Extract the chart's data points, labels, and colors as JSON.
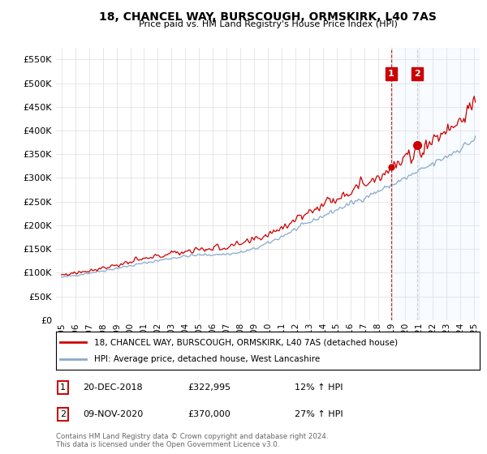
{
  "title": "18, CHANCEL WAY, BURSCOUGH, ORMSKIRK, L40 7AS",
  "subtitle": "Price paid vs. HM Land Registry's House Price Index (HPI)",
  "legend_entry1": "18, CHANCEL WAY, BURSCOUGH, ORMSKIRK, L40 7AS (detached house)",
  "legend_entry2": "HPI: Average price, detached house, West Lancashire",
  "annotation1_label": "1",
  "annotation1_date": "20-DEC-2018",
  "annotation1_price": "£322,995",
  "annotation1_hpi": "12% ↑ HPI",
  "annotation2_label": "2",
  "annotation2_date": "09-NOV-2020",
  "annotation2_price": "£370,000",
  "annotation2_hpi": "27% ↑ HPI",
  "footer": "Contains HM Land Registry data © Crown copyright and database right 2024.\nThis data is licensed under the Open Government Licence v3.0.",
  "sale1_year": 2018.96,
  "sale1_value": 322995,
  "sale2_year": 2020.86,
  "sale2_value": 370000,
  "property_color": "#cc0000",
  "hpi_color": "#88aacc",
  "annotation_box_color": "#cc0000",
  "vline1_color": "#cc0000",
  "vline2_color": "#aabbcc",
  "highlight_color": "#ddeeff",
  "grid_color": "#dddddd",
  "background_color": "#ffffff",
  "ylim": [
    0,
    575000
  ],
  "yticks": [
    0,
    50000,
    100000,
    150000,
    200000,
    250000,
    300000,
    350000,
    400000,
    450000,
    500000,
    550000
  ],
  "xlim_start": 1994.6,
  "xlim_end": 2025.4,
  "xticks": [
    1995,
    1996,
    1997,
    1998,
    1999,
    2000,
    2001,
    2002,
    2003,
    2004,
    2005,
    2006,
    2007,
    2008,
    2009,
    2010,
    2011,
    2012,
    2013,
    2014,
    2015,
    2016,
    2017,
    2018,
    2019,
    2020,
    2021,
    2022,
    2023,
    2024,
    2025
  ]
}
